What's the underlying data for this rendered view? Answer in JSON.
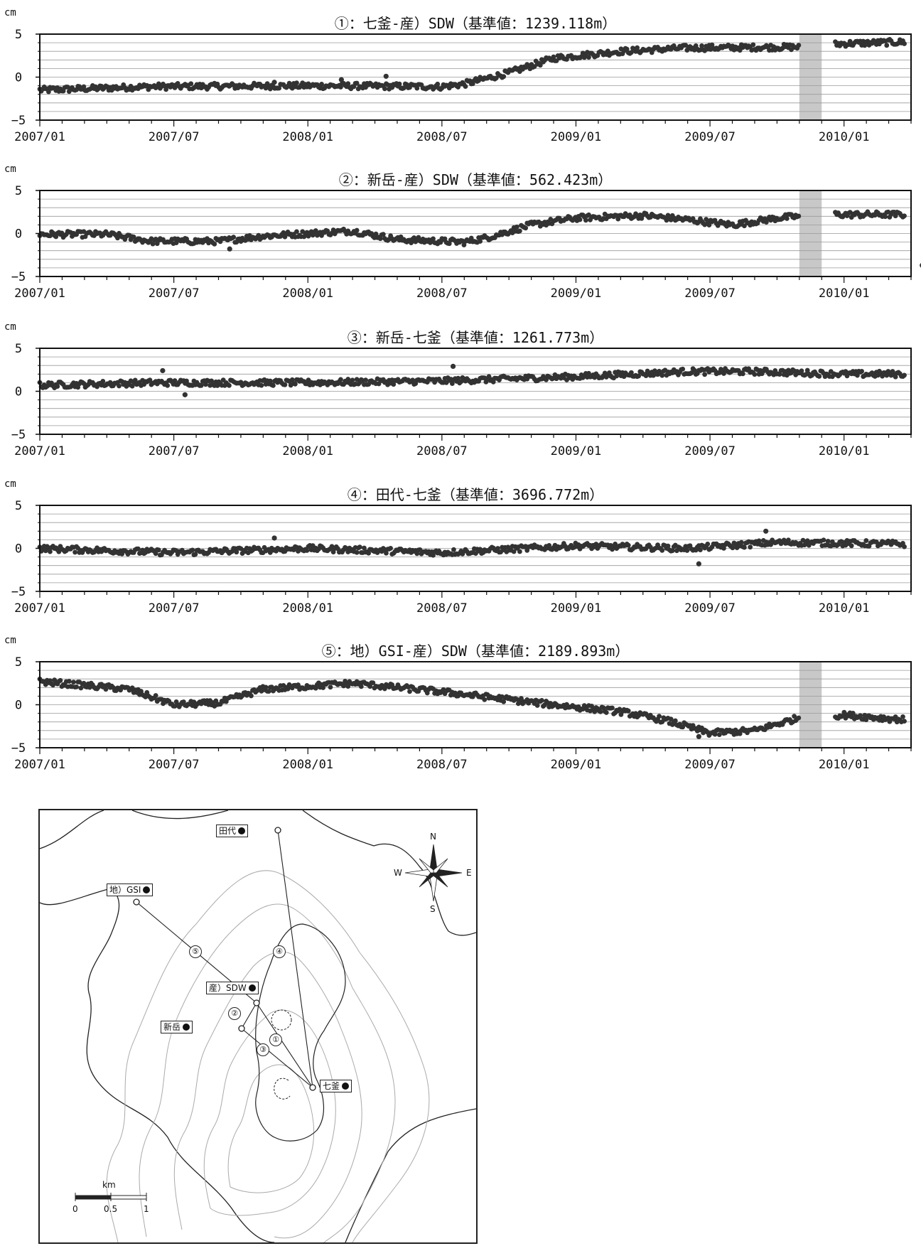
{
  "chart_data": [
    {
      "type": "scatter",
      "title": "①：七釜-産）SDW（基準値：1239.118m）",
      "ylabel": "cm",
      "ylim": [
        -5,
        5
      ],
      "yticks": [
        "5",
        "0",
        "−5"
      ],
      "xlim": [
        "2007/01",
        "2010/04"
      ],
      "xticks": [
        "2007/01",
        "2007/07",
        "2008/01",
        "2008/07",
        "2009/01",
        "2009/07",
        "2010/01"
      ],
      "grid": true,
      "gap": [
        "2009/11",
        "2009/12"
      ],
      "trend": [
        [
          "2007/01",
          -1.5
        ],
        [
          "2007/06",
          -1.1
        ],
        [
          "2008/01",
          -1.0
        ],
        [
          "2008/07",
          -1.1
        ],
        [
          "2008/08",
          -0.8
        ],
        [
          "2008/10",
          0.5
        ],
        [
          "2008/12",
          2.2
        ],
        [
          "2009/03",
          3.0
        ],
        [
          "2009/06",
          3.4
        ],
        [
          "2009/11",
          3.5
        ],
        [
          "2010/01",
          3.9
        ],
        [
          "2010/04",
          4.1
        ]
      ],
      "outliers": [
        [
          "2007/11",
          -0.6
        ],
        [
          "2008/02",
          -0.3
        ],
        [
          "2008/04",
          0.1
        ]
      ]
    },
    {
      "type": "scatter",
      "title": "②：新岳-産）SDW（基準値：562.423m）",
      "ylabel": "cm",
      "ylim": [
        -5,
        5
      ],
      "yticks": [
        "5",
        "0",
        "−5"
      ],
      "xlim": [
        "2007/01",
        "2010/04"
      ],
      "xticks": [
        "2007/01",
        "2007/07",
        "2008/01",
        "2008/07",
        "2009/01",
        "2009/07",
        "2010/01"
      ],
      "grid": true,
      "gap": [
        "2009/11",
        "2009/12"
      ],
      "trend": [
        [
          "2007/01",
          -0.1
        ],
        [
          "2007/04",
          -0.1
        ],
        [
          "2007/06",
          -0.9
        ],
        [
          "2007/09",
          -0.9
        ],
        [
          "2007/11",
          -0.3
        ],
        [
          "2008/03",
          0.3
        ],
        [
          "2008/05",
          -0.7
        ],
        [
          "2008/08",
          -1.0
        ],
        [
          "2008/09",
          -0.5
        ],
        [
          "2008/11",
          1.0
        ],
        [
          "2009/01",
          1.8
        ],
        [
          "2009/04",
          2.1
        ],
        [
          "2009/06",
          1.6
        ],
        [
          "2009/08",
          1.0
        ],
        [
          "2009/10",
          1.8
        ],
        [
          "2009/12",
          2.2
        ],
        [
          "2010/04",
          2.2
        ]
      ],
      "outliers": [
        [
          "2007/09",
          -1.8
        ],
        [
          "2010/04",
          -3.7
        ]
      ]
    },
    {
      "type": "scatter",
      "title": "③：新岳-七釜（基準値：1261.773m）",
      "ylabel": "cm",
      "ylim": [
        -5,
        5
      ],
      "yticks": [
        "5",
        "0",
        "−5"
      ],
      "xlim": [
        "2007/01",
        "2010/04"
      ],
      "xticks": [
        "2007/01",
        "2007/07",
        "2008/01",
        "2008/07",
        "2009/01",
        "2009/07",
        "2010/01"
      ],
      "grid": true,
      "trend": [
        [
          "2007/01",
          0.7
        ],
        [
          "2007/06",
          1.0
        ],
        [
          "2008/01",
          1.0
        ],
        [
          "2008/07",
          1.2
        ],
        [
          "2009/01",
          1.7
        ],
        [
          "2009/06",
          2.3
        ],
        [
          "2009/09",
          2.3
        ],
        [
          "2010/01",
          2.0
        ],
        [
          "2010/04",
          2.0
        ]
      ],
      "outliers": [
        [
          "2007/06",
          2.4
        ],
        [
          "2007/07",
          -0.4
        ],
        [
          "2008/07",
          2.9
        ]
      ]
    },
    {
      "type": "scatter",
      "title": "④：田代-七釜（基準値：3696.772m）",
      "ylabel": "cm",
      "ylim": [
        -5,
        5
      ],
      "yticks": [
        "5",
        "0",
        "−5"
      ],
      "xlim": [
        "2007/01",
        "2010/04"
      ],
      "xticks": [
        "2007/01",
        "2007/07",
        "2008/01",
        "2008/07",
        "2009/01",
        "2009/07",
        "2010/01"
      ],
      "grid": true,
      "trend": [
        [
          "2007/01",
          0.0
        ],
        [
          "2007/07",
          -0.5
        ],
        [
          "2008/01",
          0.0
        ],
        [
          "2008/07",
          -0.5
        ],
        [
          "2009/01",
          0.3
        ],
        [
          "2009/06",
          0.0
        ],
        [
          "2009/10",
          0.7
        ],
        [
          "2010/04",
          0.5
        ]
      ],
      "outliers": [
        [
          "2007/11",
          1.2
        ],
        [
          "2009/06",
          -1.8
        ],
        [
          "2009/09",
          2.0
        ]
      ]
    },
    {
      "type": "scatter",
      "title": "⑤：地）GSI-産）SDW（基準値：2189.893m）",
      "ylabel": "cm",
      "ylim": [
        -5,
        5
      ],
      "yticks": [
        "5",
        "0",
        "−5"
      ],
      "xlim": [
        "2007/01",
        "2010/04"
      ],
      "xticks": [
        "2007/01",
        "2007/07",
        "2008/01",
        "2008/07",
        "2009/01",
        "2009/07",
        "2010/01"
      ],
      "grid": true,
      "gap": [
        "2009/11",
        "2009/12"
      ],
      "trend": [
        [
          "2007/01",
          2.7
        ],
        [
          "2007/05",
          1.8
        ],
        [
          "2007/07",
          0.0
        ],
        [
          "2007/09",
          0.2
        ],
        [
          "2007/11",
          1.8
        ],
        [
          "2008/03",
          2.5
        ],
        [
          "2008/07",
          1.5
        ],
        [
          "2008/12",
          0.0
        ],
        [
          "2009/03",
          -0.8
        ],
        [
          "2009/05",
          -1.8
        ],
        [
          "2009/07",
          -3.3
        ],
        [
          "2009/09",
          -3.0
        ],
        [
          "2009/11",
          -1.5
        ],
        [
          "2010/01",
          -1.2
        ],
        [
          "2010/04",
          -1.8
        ]
      ],
      "outliers": [
        [
          "2009/06",
          -3.7
        ]
      ]
    }
  ],
  "map": {
    "stations": {
      "tashiro": "田代",
      "gsi": "地）GSI",
      "sdw": "産）SDW",
      "shindake": "新岳",
      "nanagama": "七釜"
    },
    "line_numbers": [
      "①",
      "②",
      "③",
      "④",
      "⑤"
    ],
    "compass": {
      "n": "N",
      "s": "S",
      "e": "E",
      "w": "W"
    },
    "scale": {
      "unit": "km",
      "labels": [
        "0",
        "0.5",
        "1"
      ]
    }
  }
}
